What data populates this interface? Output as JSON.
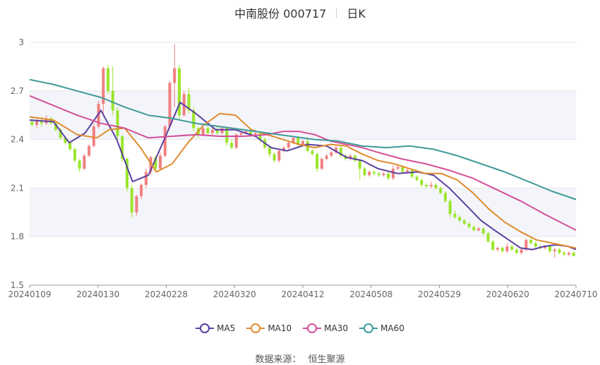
{
  "header": {
    "title": "中南股份 000717",
    "period": "日K"
  },
  "source": {
    "label": "数据来源：",
    "name": "恒生聚源"
  },
  "colors": {
    "up": "#f08080",
    "down": "#9be52c",
    "grid": "#e6e6e6",
    "band": "#f4f5fa"
  },
  "chart_data": {
    "type": "candlestick",
    "ylim": [
      1.5,
      3.0
    ],
    "yticks": [
      "1.5",
      "1.8",
      "2.1",
      "2.4",
      "2.7",
      "3"
    ],
    "xticks": [
      "20240109",
      "20240130",
      "20240228",
      "20240320",
      "20240412",
      "20240508",
      "20240529",
      "20240620",
      "20240710"
    ],
    "n_bars": 115,
    "legend": [
      {
        "name": "MA5",
        "color": "#5b3fa0"
      },
      {
        "name": "MA10",
        "color": "#e08b2e"
      },
      {
        "name": "MA30",
        "color": "#d44f9a"
      },
      {
        "name": "MA60",
        "color": "#3f9a9a"
      }
    ],
    "candles": [
      [
        2.51,
        2.49,
        2.53,
        2.48
      ],
      [
        2.49,
        2.52,
        2.53,
        2.47
      ],
      [
        2.52,
        2.5,
        2.54,
        2.48
      ],
      [
        2.5,
        2.53,
        2.55,
        2.49
      ],
      [
        2.53,
        2.5,
        2.54,
        2.49
      ],
      [
        2.5,
        2.46,
        2.51,
        2.45
      ],
      [
        2.46,
        2.41,
        2.47,
        2.4
      ],
      [
        2.41,
        2.38,
        2.42,
        2.37
      ],
      [
        2.38,
        2.34,
        2.39,
        2.33
      ],
      [
        2.34,
        2.27,
        2.35,
        2.26
      ],
      [
        2.27,
        2.22,
        2.28,
        2.2
      ],
      [
        2.22,
        2.3,
        2.31,
        2.21
      ],
      [
        2.3,
        2.36,
        2.37,
        2.29
      ],
      [
        2.36,
        2.48,
        2.5,
        2.35
      ],
      [
        2.48,
        2.62,
        2.64,
        2.47
      ],
      [
        2.62,
        2.84,
        2.85,
        2.55
      ],
      [
        2.84,
        2.7,
        2.86,
        2.68
      ],
      [
        2.7,
        2.58,
        2.85,
        2.55
      ],
      [
        2.58,
        2.42,
        2.6,
        2.4
      ],
      [
        2.42,
        2.28,
        2.43,
        2.26
      ],
      [
        2.28,
        2.1,
        2.29,
        2.08
      ],
      [
        2.1,
        1.95,
        2.12,
        1.92
      ],
      [
        1.95,
        2.05,
        2.06,
        1.93
      ],
      [
        2.05,
        2.12,
        2.13,
        2.03
      ],
      [
        2.12,
        2.2,
        2.22,
        2.1
      ],
      [
        2.2,
        2.29,
        2.3,
        2.18
      ],
      [
        2.29,
        2.22,
        2.3,
        2.2
      ],
      [
        2.22,
        2.3,
        2.32,
        2.21
      ],
      [
        2.3,
        2.48,
        2.49,
        2.29
      ],
      [
        2.48,
        2.75,
        2.76,
        2.47
      ],
      [
        2.75,
        2.84,
        2.99,
        2.6
      ],
      [
        2.84,
        2.55,
        2.86,
        2.52
      ],
      [
        2.55,
        2.68,
        2.7,
        2.54
      ],
      [
        2.68,
        2.58,
        2.72,
        2.56
      ],
      [
        2.58,
        2.47,
        2.6,
        2.45
      ],
      [
        2.47,
        2.43,
        2.48,
        2.41
      ],
      [
        2.43,
        2.47,
        2.49,
        2.42
      ],
      [
        2.47,
        2.44,
        2.48,
        2.43
      ],
      [
        2.44,
        2.46,
        2.47,
        2.43
      ],
      [
        2.46,
        2.44,
        2.48,
        2.43
      ],
      [
        2.44,
        2.47,
        2.48,
        2.43
      ],
      [
        2.47,
        2.38,
        2.48,
        2.36
      ],
      [
        2.38,
        2.35,
        2.4,
        2.34
      ],
      [
        2.35,
        2.43,
        2.44,
        2.34
      ],
      [
        2.43,
        2.44,
        2.45,
        2.42
      ],
      [
        2.44,
        2.45,
        2.46,
        2.43
      ],
      [
        2.45,
        2.43,
        2.46,
        2.42
      ],
      [
        2.43,
        2.44,
        2.45,
        2.42
      ],
      [
        2.44,
        2.4,
        2.45,
        2.38
      ],
      [
        2.4,
        2.35,
        2.41,
        2.34
      ],
      [
        2.35,
        2.31,
        2.36,
        2.29
      ],
      [
        2.31,
        2.27,
        2.32,
        2.26
      ],
      [
        2.27,
        2.33,
        2.34,
        2.26
      ],
      [
        2.33,
        2.35,
        2.36,
        2.32
      ],
      [
        2.35,
        2.38,
        2.39,
        2.34
      ],
      [
        2.38,
        2.41,
        2.42,
        2.37
      ],
      [
        2.41,
        2.37,
        2.42,
        2.36
      ],
      [
        2.37,
        2.39,
        2.4,
        2.36
      ],
      [
        2.39,
        2.33,
        2.4,
        2.32
      ],
      [
        2.33,
        2.31,
        2.34,
        2.3
      ],
      [
        2.31,
        2.22,
        2.32,
        2.2
      ],
      [
        2.22,
        2.28,
        2.29,
        2.21
      ],
      [
        2.28,
        2.3,
        2.31,
        2.27
      ],
      [
        2.3,
        2.32,
        2.33,
        2.29
      ],
      [
        2.32,
        2.35,
        2.36,
        2.31
      ],
      [
        2.35,
        2.3,
        2.36,
        2.29
      ],
      [
        2.3,
        2.28,
        2.31,
        2.27
      ],
      [
        2.28,
        2.3,
        2.31,
        2.27
      ],
      [
        2.3,
        2.27,
        2.31,
        2.26
      ],
      [
        2.27,
        2.22,
        2.28,
        2.15
      ],
      [
        2.22,
        2.18,
        2.23,
        2.17
      ],
      [
        2.18,
        2.2,
        2.21,
        2.17
      ],
      [
        2.2,
        2.19,
        2.21,
        2.18
      ],
      [
        2.19,
        2.18,
        2.2,
        2.17
      ],
      [
        2.18,
        2.19,
        2.2,
        2.17
      ],
      [
        2.19,
        2.16,
        2.2,
        2.15
      ],
      [
        2.16,
        2.22,
        2.24,
        2.15
      ],
      [
        2.22,
        2.23,
        2.24,
        2.21
      ],
      [
        2.23,
        2.2,
        2.24,
        2.19
      ],
      [
        2.2,
        2.21,
        2.22,
        2.19
      ],
      [
        2.21,
        2.17,
        2.22,
        2.16
      ],
      [
        2.17,
        2.15,
        2.18,
        2.14
      ],
      [
        2.15,
        2.12,
        2.16,
        2.11
      ],
      [
        2.12,
        2.11,
        2.13,
        2.1
      ],
      [
        2.11,
        2.12,
        2.14,
        2.1
      ],
      [
        2.12,
        2.1,
        2.13,
        2.09
      ],
      [
        2.1,
        2.07,
        2.11,
        2.06
      ],
      [
        2.07,
        2.02,
        2.08,
        2.01
      ],
      [
        2.02,
        1.94,
        2.03,
        1.92
      ],
      [
        1.94,
        1.92,
        1.96,
        1.91
      ],
      [
        1.92,
        1.9,
        1.93,
        1.89
      ],
      [
        1.9,
        1.88,
        1.91,
        1.87
      ],
      [
        1.88,
        1.86,
        1.89,
        1.85
      ],
      [
        1.86,
        1.84,
        1.87,
        1.83
      ],
      [
        1.84,
        1.85,
        1.86,
        1.83
      ],
      [
        1.85,
        1.82,
        1.86,
        1.81
      ],
      [
        1.82,
        1.77,
        1.83,
        1.76
      ],
      [
        1.77,
        1.72,
        1.78,
        1.71
      ],
      [
        1.72,
        1.73,
        1.74,
        1.71
      ],
      [
        1.73,
        1.71,
        1.74,
        1.7
      ],
      [
        1.71,
        1.74,
        1.76,
        1.7
      ],
      [
        1.74,
        1.72,
        1.75,
        1.71
      ],
      [
        1.72,
        1.7,
        1.73,
        1.69
      ],
      [
        1.7,
        1.72,
        1.73,
        1.69
      ],
      [
        1.72,
        1.78,
        1.79,
        1.71
      ],
      [
        1.78,
        1.76,
        1.8,
        1.75
      ],
      [
        1.76,
        1.74,
        1.77,
        1.73
      ],
      [
        1.74,
        1.73,
        1.75,
        1.72
      ],
      [
        1.73,
        1.74,
        1.75,
        1.72
      ],
      [
        1.74,
        1.71,
        1.75,
        1.7
      ],
      [
        1.71,
        1.72,
        1.73,
        1.67
      ],
      [
        1.72,
        1.7,
        1.73,
        1.69
      ],
      [
        1.7,
        1.69,
        1.71,
        1.68
      ],
      [
        1.69,
        1.7,
        1.71,
        1.68
      ],
      [
        1.7,
        1.68,
        1.71,
        1.68
      ]
    ],
    "ma_lines": {
      "MA5": [
        [
          0,
          2.52
        ],
        [
          6,
          2.51
        ],
        [
          10,
          2.38
        ],
        [
          14,
          2.44
        ],
        [
          18,
          2.58
        ],
        [
          22,
          2.4
        ],
        [
          26,
          2.14
        ],
        [
          30,
          2.18
        ],
        [
          34,
          2.4
        ],
        [
          38,
          2.63
        ],
        [
          42,
          2.56
        ],
        [
          47,
          2.46
        ],
        [
          52,
          2.46
        ],
        [
          57,
          2.42
        ],
        [
          61,
          2.35
        ],
        [
          65,
          2.33
        ],
        [
          70,
          2.37
        ],
        [
          75,
          2.36
        ],
        [
          80,
          2.29
        ],
        [
          84,
          2.27
        ],
        [
          88,
          2.22
        ],
        [
          93,
          2.19
        ],
        [
          98,
          2.2
        ],
        [
          102,
          2.18
        ],
        [
          106,
          2.1
        ],
        [
          110,
          2.0
        ],
        [
          114,
          1.9
        ],
        [
          118,
          1.83
        ],
        [
          121,
          1.78
        ],
        [
          124,
          1.73
        ],
        [
          127,
          1.72
        ],
        [
          130,
          1.74
        ],
        [
          133,
          1.75
        ],
        [
          136,
          1.74
        ],
        [
          138,
          1.72
        ]
      ],
      "MA10": [
        [
          0,
          2.54
        ],
        [
          6,
          2.52
        ],
        [
          12,
          2.43
        ],
        [
          17,
          2.41
        ],
        [
          20,
          2.46
        ],
        [
          24,
          2.47
        ],
        [
          28,
          2.35
        ],
        [
          32,
          2.2
        ],
        [
          36,
          2.25
        ],
        [
          40,
          2.38
        ],
        [
          44,
          2.49
        ],
        [
          48,
          2.56
        ],
        [
          52,
          2.55
        ],
        [
          56,
          2.46
        ],
        [
          60,
          2.43
        ],
        [
          64,
          2.4
        ],
        [
          68,
          2.37
        ],
        [
          72,
          2.35
        ],
        [
          76,
          2.37
        ],
        [
          80,
          2.36
        ],
        [
          84,
          2.31
        ],
        [
          88,
          2.27
        ],
        [
          92,
          2.25
        ],
        [
          96,
          2.22
        ],
        [
          100,
          2.19
        ],
        [
          104,
          2.19
        ],
        [
          108,
          2.15
        ],
        [
          112,
          2.07
        ],
        [
          116,
          1.97
        ],
        [
          120,
          1.89
        ],
        [
          124,
          1.83
        ],
        [
          128,
          1.78
        ],
        [
          132,
          1.76
        ],
        [
          136,
          1.74
        ],
        [
          138,
          1.73
        ]
      ],
      "MA30": [
        [
          0,
          2.67
        ],
        [
          6,
          2.61
        ],
        [
          12,
          2.55
        ],
        [
          18,
          2.5
        ],
        [
          24,
          2.47
        ],
        [
          30,
          2.41
        ],
        [
          36,
          2.42
        ],
        [
          42,
          2.43
        ],
        [
          48,
          2.42
        ],
        [
          54,
          2.42
        ],
        [
          60,
          2.43
        ],
        [
          64,
          2.45
        ],
        [
          68,
          2.45
        ],
        [
          72,
          2.43
        ],
        [
          76,
          2.39
        ],
        [
          80,
          2.37
        ],
        [
          84,
          2.35
        ],
        [
          88,
          2.32
        ],
        [
          94,
          2.28
        ],
        [
          100,
          2.25
        ],
        [
          106,
          2.21
        ],
        [
          112,
          2.16
        ],
        [
          118,
          2.09
        ],
        [
          124,
          2.02
        ],
        [
          130,
          1.94
        ],
        [
          134,
          1.89
        ],
        [
          138,
          1.84
        ]
      ],
      "MA60": [
        [
          0,
          2.77
        ],
        [
          6,
          2.74
        ],
        [
          12,
          2.7
        ],
        [
          18,
          2.66
        ],
        [
          24,
          2.6
        ],
        [
          30,
          2.55
        ],
        [
          36,
          2.53
        ],
        [
          42,
          2.5
        ],
        [
          48,
          2.48
        ],
        [
          54,
          2.46
        ],
        [
          60,
          2.44
        ],
        [
          66,
          2.42
        ],
        [
          72,
          2.4
        ],
        [
          78,
          2.39
        ],
        [
          84,
          2.36
        ],
        [
          90,
          2.35
        ],
        [
          96,
          2.36
        ],
        [
          102,
          2.34
        ],
        [
          108,
          2.3
        ],
        [
          114,
          2.25
        ],
        [
          120,
          2.2
        ],
        [
          126,
          2.14
        ],
        [
          132,
          2.08
        ],
        [
          138,
          2.03
        ]
      ]
    }
  }
}
